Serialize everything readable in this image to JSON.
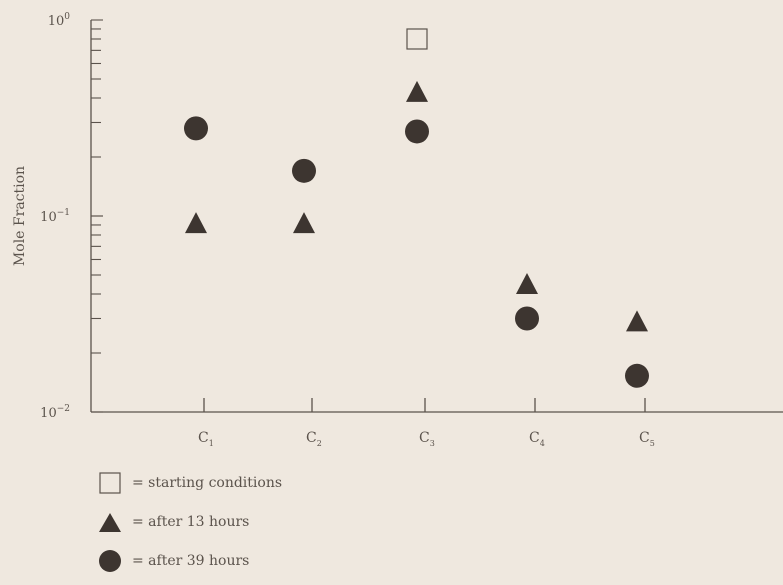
{
  "chart_data": {
    "type": "scatter",
    "ylabel": "Mole Fraction",
    "yscale": "log",
    "ylim": [
      0.01,
      1
    ],
    "yticks": [
      {
        "base": "10",
        "exp": "0"
      },
      {
        "base": "10",
        "exp": "−1"
      },
      {
        "base": "10",
        "exp": "−2"
      }
    ],
    "categories": [
      {
        "base": "C",
        "sub": "1"
      },
      {
        "base": "C",
        "sub": "2"
      },
      {
        "base": "C",
        "sub": "3"
      },
      {
        "base": "C",
        "sub": "4"
      },
      {
        "base": "C",
        "sub": "5"
      }
    ],
    "series": [
      {
        "name": "= starting conditions",
        "marker": "open-square",
        "values": [
          null,
          null,
          0.8,
          null,
          null
        ]
      },
      {
        "name": "= after 13 hours",
        "marker": "filled-triangle",
        "values": [
          0.092,
          0.092,
          0.43,
          0.045,
          0.029
        ]
      },
      {
        "name": "= after 39 hours",
        "marker": "filled-circle",
        "values": [
          0.28,
          0.17,
          0.27,
          0.03,
          0.0153
        ]
      }
    ],
    "grid": false,
    "legend_placement": "bottom-left",
    "colors": {
      "background": "#efe8df",
      "ink": "#5b534c",
      "marker": "#3d3530"
    }
  }
}
